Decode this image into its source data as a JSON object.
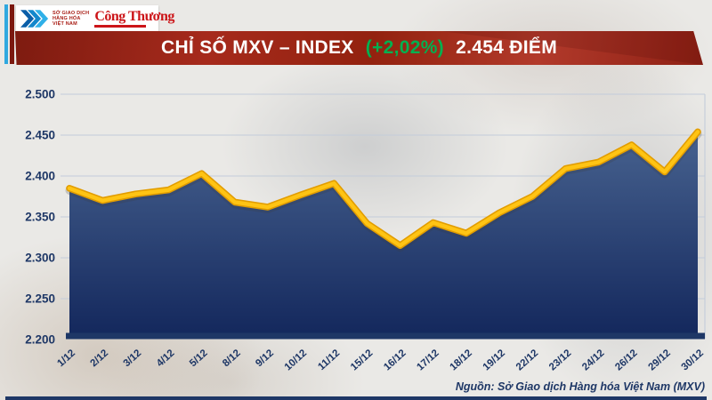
{
  "header": {
    "mxv_logo": {
      "org_lines": [
        "SỞ GIAO DỊCH",
        "HÀNG HÓA",
        "VIỆT NAM"
      ]
    },
    "newspaper": "Công Thương",
    "banner": {
      "title": "CHỈ SỐ MXV – INDEX",
      "change": "(+2,02%)",
      "value": "2.454 ĐIỂM"
    }
  },
  "chart_data": {
    "type": "area",
    "title": "CHỈ SỐ MXV – INDEX (+2,02%) 2.454 ĐIỂM",
    "x": [
      "1/12",
      "2/12",
      "3/12",
      "4/12",
      "5/12",
      "8/12",
      "9/12",
      "10/12",
      "11/12",
      "15/12",
      "16/12",
      "17/12",
      "18/12",
      "19/12",
      "22/12",
      "23/12",
      "24/12",
      "26/12",
      "29/12",
      "30/12"
    ],
    "values": [
      2.385,
      2.37,
      2.378,
      2.383,
      2.403,
      2.368,
      2.362,
      2.377,
      2.391,
      2.342,
      2.315,
      2.343,
      2.33,
      2.355,
      2.375,
      2.409,
      2.417,
      2.438,
      2.405,
      2.454
    ],
    "ylim": [
      2.2,
      2.5
    ],
    "y_ticks": [
      {
        "value": 2.5,
        "label": "2.500"
      },
      {
        "value": 2.45,
        "label": "2.450"
      },
      {
        "value": 2.4,
        "label": "2.400"
      },
      {
        "value": 2.35,
        "label": "2.350"
      },
      {
        "value": 2.3,
        "label": "2.300"
      },
      {
        "value": 2.25,
        "label": "2.250"
      },
      {
        "value": 2.2,
        "label": "2.200"
      }
    ],
    "grid": true,
    "legend": "none",
    "colors": {
      "line": "#FFC414",
      "line_edge": "#E29D00",
      "fill_top": "#47628F",
      "fill_bottom": "#13275C",
      "axis_text": "#1E3766",
      "gridline": "#C3CCDA"
    }
  },
  "footer": {
    "source": "Nguồn: Sở Giao dịch Hàng hóa Việt Nam (MXV)"
  },
  "theme": {
    "banner_red_dark": "#7E1B10",
    "banner_red": "#A62A1C",
    "accent_green": "#00B050",
    "navy": "#1E3766",
    "stripe_blue": "#2FA8DF",
    "stripe_maroon": "#7B180F",
    "logo_red": "#CC1418",
    "mxv_blue_dark": "#0A5EA8",
    "mxv_blue_mid": "#1287CC",
    "mxv_blue_light": "#2FB0E8"
  }
}
